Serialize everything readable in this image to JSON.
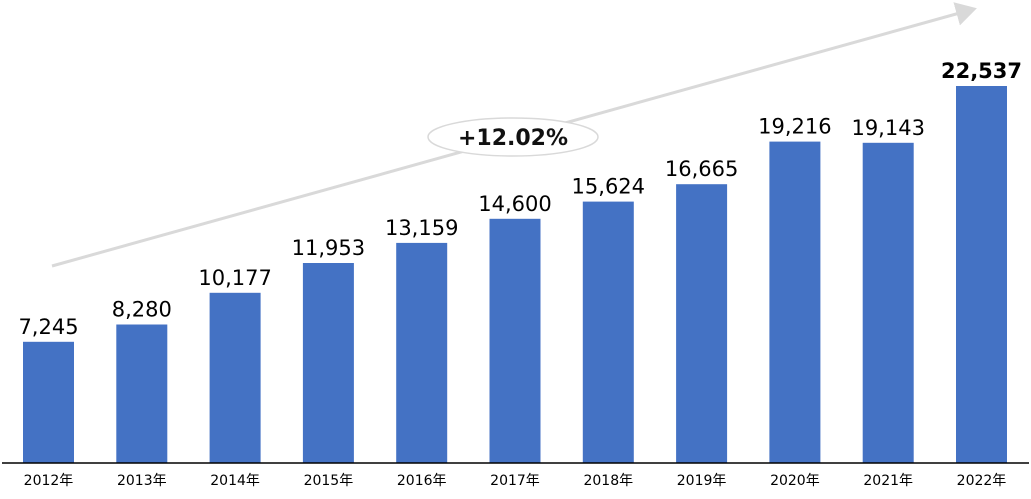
{
  "chart_data": {
    "type": "bar",
    "categories": [
      "2012年",
      "2013年",
      "2014年",
      "2015年",
      "2016年",
      "2017年",
      "2018年",
      "2019年",
      "2020年",
      "2021年",
      "2022年"
    ],
    "values": [
      7245,
      8280,
      10177,
      11953,
      13159,
      14600,
      15624,
      16665,
      19216,
      19143,
      22537
    ],
    "data_labels": [
      "7,245",
      "8,280",
      "10,177",
      "11,953",
      "13,159",
      "14,600",
      "15,624",
      "16,665",
      "19,216",
      "19,143",
      "22,537"
    ],
    "highlight_index": 10,
    "annotation": "+12.02%",
    "ylim": [
      0,
      24000
    ],
    "grid": false,
    "legend": "none",
    "bar_color": "#4472C4",
    "arrow_color": "#D9D9D9",
    "axis_color": "#000000"
  }
}
